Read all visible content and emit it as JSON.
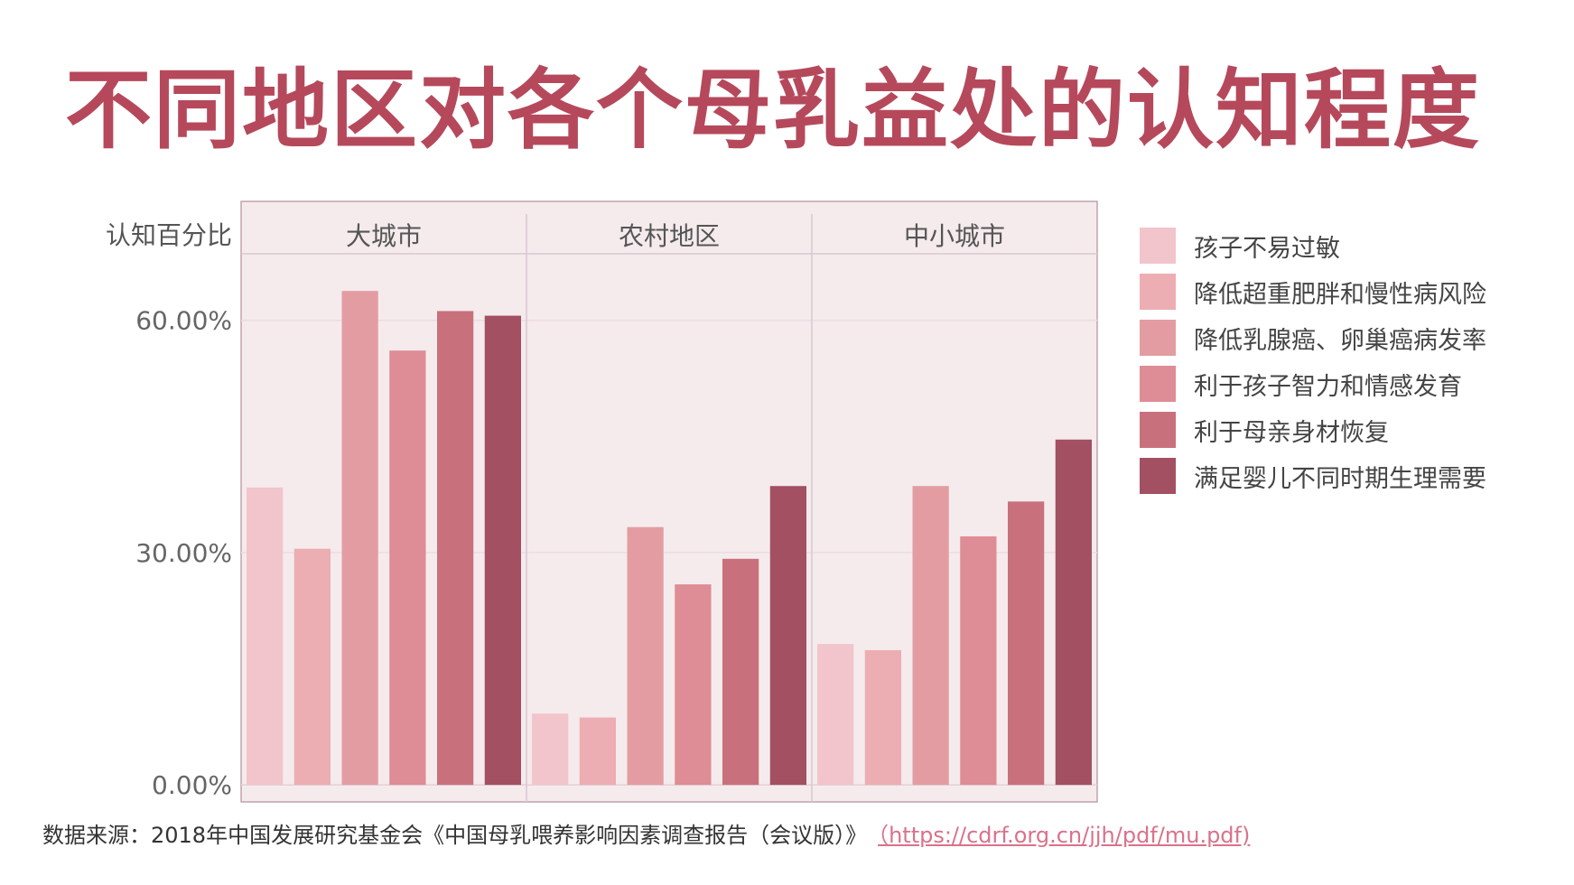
{
  "title": "不同地区对各个母乳益处的认知程度",
  "colors": {
    "title": "#b5495b",
    "panel_bg": "#f5ebec",
    "panel_border": "#b5909a",
    "divider": "#d9c8d3",
    "link": "#d9728a"
  },
  "chart_data": {
    "type": "bar",
    "ylabel": "认知百分比",
    "ylim": [
      -0.022,
      0.686
    ],
    "yticks": [
      0,
      0.3,
      0.6
    ],
    "ytick_labels": [
      "0.00%",
      "30.00%",
      "60.00%"
    ],
    "grid": true,
    "legend_position": "right",
    "panels": [
      "大城市",
      "农村地区",
      "中小城市"
    ],
    "series": [
      {
        "name": "孩子不易过敏",
        "color": "#f2c4cb",
        "values": [
          0.384,
          0.092,
          0.182
        ]
      },
      {
        "name": "降低超重肥胖和慢性病风险",
        "color": "#ecadb3",
        "values": [
          0.305,
          0.087,
          0.174
        ]
      },
      {
        "name": "降低乳腺癌、卵巢癌病发率",
        "color": "#e39da2",
        "values": [
          0.638,
          0.333,
          0.386
        ]
      },
      {
        "name": "利于孩子智力和情感发育",
        "color": "#de8c95",
        "values": [
          0.561,
          0.259,
          0.321
        ]
      },
      {
        "name": "利于母亲身材恢复",
        "color": "#c8717d",
        "values": [
          0.612,
          0.292,
          0.366
        ]
      },
      {
        "name": "满足婴儿不同时期生理需要",
        "color": "#a35062",
        "values": [
          0.606,
          0.386,
          0.446
        ]
      }
    ]
  },
  "source": {
    "text": "数据来源：2018年中国发展研究基金会《中国母乳喂养影响因素调查报告（会议版）》",
    "link": "（https://cdrf.org.cn/jjh/pdf/mu.pdf)"
  }
}
